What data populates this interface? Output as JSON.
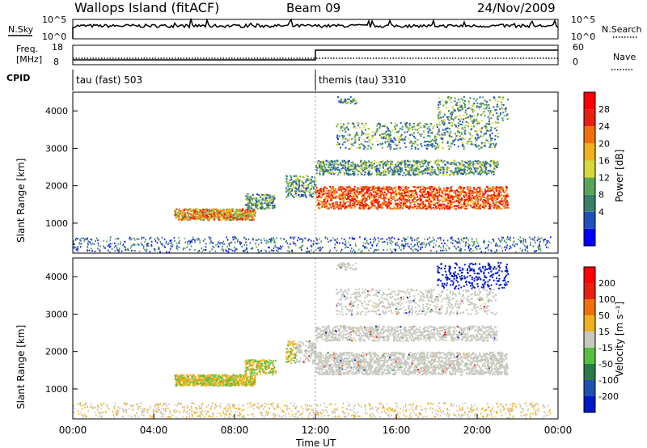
{
  "header": {
    "site": "Wallops Island (fitACF)",
    "beam": "Beam 09",
    "date": "24/Nov/2009"
  },
  "noise_panel": {
    "left_label": "N.Sky",
    "left_ticks": [
      "10^5",
      "10^0"
    ],
    "right_ticks": [
      "10^5",
      "10^0"
    ],
    "right_label": "N.Search"
  },
  "freq_panel": {
    "left_label_1": "Freq.",
    "left_label_2": "[MHz]",
    "left_ticks": [
      "18",
      "8"
    ],
    "right_ticks": [
      "60",
      "0"
    ],
    "right_label": "Nave"
  },
  "cpid": {
    "label": "CPID",
    "segments": [
      {
        "name": "tau (fast) 503",
        "start_hour": 0
      },
      {
        "name": "themis (tau) 3310",
        "start_hour": 12
      }
    ]
  },
  "chart_data": [
    {
      "type": "heatmap",
      "name": "power",
      "ylabel": "Slant Range [km]",
      "yticks": [
        1000,
        2000,
        3000,
        4000
      ],
      "ylim": [
        200,
        4500
      ],
      "xlim": [
        0,
        24
      ],
      "colorbar": {
        "label": "Power [dB]",
        "ticks": [
          "28",
          "24",
          "20",
          "16",
          "12",
          "8",
          "4"
        ],
        "colors": [
          "#0000ff",
          "#2050c0",
          "#3a7f6a",
          "#5aa55a",
          "#d8d83a",
          "#f0b020",
          "#f07010",
          "#e82010",
          "#ff0000"
        ]
      }
    },
    {
      "type": "heatmap",
      "name": "velocity",
      "ylabel": "Slant Range [km]",
      "yticks": [
        1000,
        2000,
        3000,
        4000
      ],
      "ylim": [
        200,
        4500
      ],
      "xlim": [
        0,
        24
      ],
      "xlabel": "Time UT",
      "xticks": [
        "00:00",
        "04:00",
        "08:00",
        "12:00",
        "16:00",
        "20:00",
        "00:00"
      ],
      "colorbar": {
        "label": "Velocity [m s⁻¹]",
        "ticks": [
          "200",
          "100",
          "50",
          "15",
          "-15",
          "-50",
          "-100",
          "-200"
        ],
        "colors": [
          "#0018c8",
          "#2050b0",
          "#2a7a4a",
          "#55c040",
          "#c8c8c0",
          "#f0b020",
          "#f07010",
          "#e82010",
          "#ff0000"
        ]
      }
    }
  ]
}
